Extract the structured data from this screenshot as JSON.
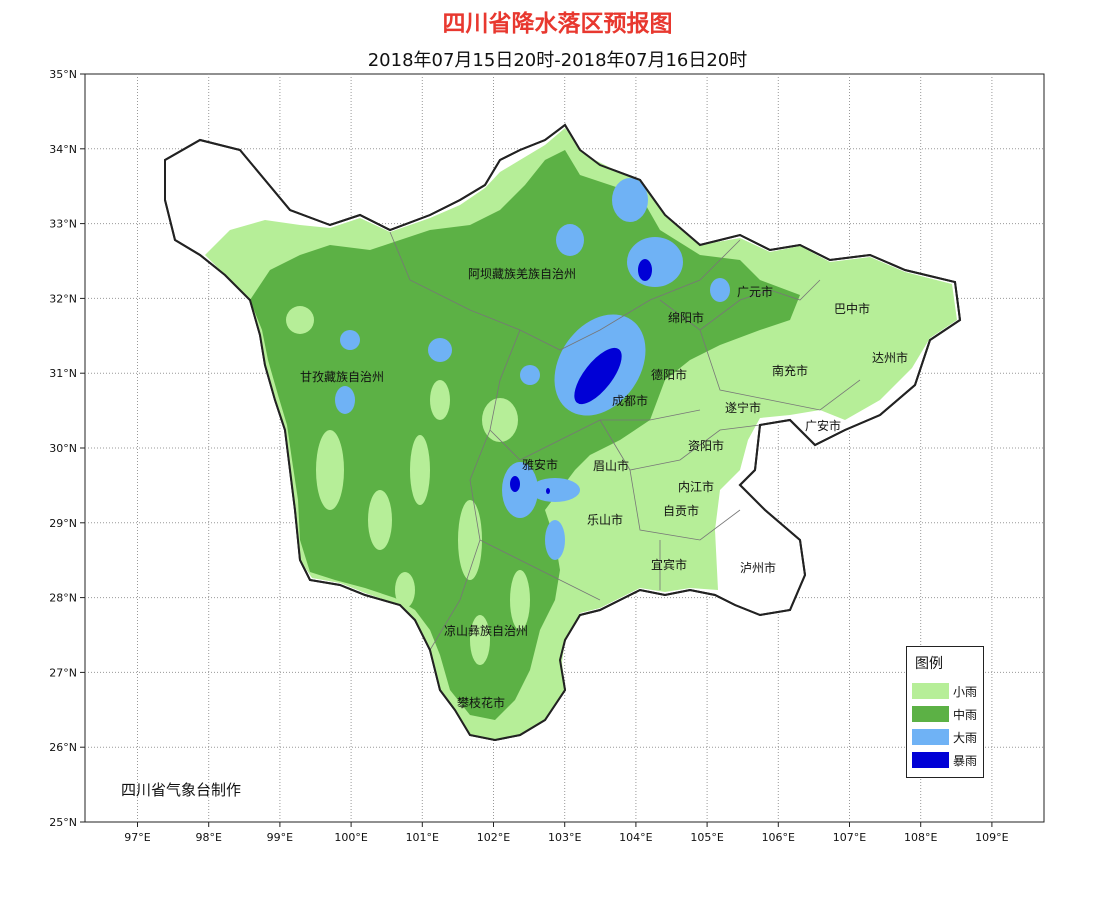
{
  "title": "四川省降水落区预报图",
  "subtitle": "2018年07月15日20时-2018年07月16日20时",
  "credit": "四川省气象台制作",
  "axes": {
    "x_ticks": [
      "97°E",
      "98°E",
      "99°E",
      "100°E",
      "101°E",
      "102°E",
      "103°E",
      "104°E",
      "105°E",
      "106°E",
      "107°E",
      "108°E",
      "109°E"
    ],
    "y_ticks": [
      "35°N",
      "34°N",
      "33°N",
      "32°N",
      "31°N",
      "30°N",
      "29°N",
      "28°N",
      "27°N",
      "26°N",
      "25°N"
    ]
  },
  "legend": {
    "title": "图例",
    "items": [
      {
        "label": "小雨",
        "color": "#b6ee98"
      },
      {
        "label": "中雨",
        "color": "#5cb145"
      },
      {
        "label": "大雨",
        "color": "#6fb2f5"
      },
      {
        "label": "暴雨",
        "color": "#0000d6"
      }
    ]
  },
  "cities": [
    {
      "name": "阿坝藏族羌族自治州"
    },
    {
      "name": "广元市"
    },
    {
      "name": "巴中市"
    },
    {
      "name": "绵阳市"
    },
    {
      "name": "甘孜藏族自治州"
    },
    {
      "name": "德阳市"
    },
    {
      "name": "南充市"
    },
    {
      "name": "达州市"
    },
    {
      "name": "成都市"
    },
    {
      "name": "遂宁市"
    },
    {
      "name": "广安市"
    },
    {
      "name": "资阳市"
    },
    {
      "name": "雅安市"
    },
    {
      "name": "眉山市"
    },
    {
      "name": "内江市"
    },
    {
      "name": "自贡市"
    },
    {
      "name": "乐山市"
    },
    {
      "name": "宜宾市"
    },
    {
      "name": "泸州市"
    },
    {
      "name": "凉山彝族自治州"
    },
    {
      "name": "攀枝花市"
    }
  ]
}
